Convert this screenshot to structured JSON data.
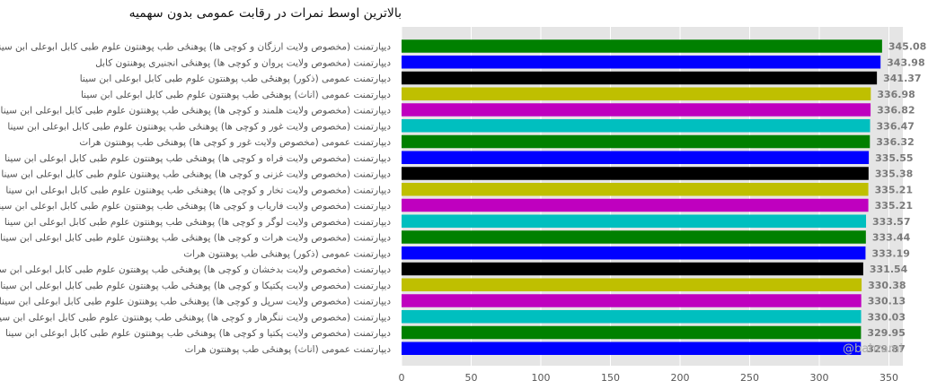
{
  "chart_data": {
    "type": "bar",
    "orientation": "horizontal",
    "title": "بالاترین اوسط نمرات در رقابت عمومی بدون سهمیه",
    "xlabel": "",
    "ylabel": "",
    "xlim": [
      0,
      360
    ],
    "xticks": [
      0,
      50,
      100,
      150,
      200,
      250,
      300,
      350
    ],
    "grid": true,
    "watermark": "@bahrami",
    "colors": [
      "#008000",
      "#0000ff",
      "#000000",
      "#bfbf00",
      "#bf00bf",
      "#00bfbf"
    ],
    "categories": [
      "دیپارتمنت (مخصوص ولایت ارزگان و کوچی ها) پوهنځی طب پوهنتون علوم طبی کابل ابوعلی ابن سینا",
      "دیپارتمنت (مخصوص ولایت پروان و کوچی ها) پوهنځی انجنیری پوهنتون کابل",
      "دیپارتمنت عمومی (ذکور) پوهنځی طب پوهنتون علوم طبی کابل ابوعلی ابن سینا",
      "دیپارتمنت عمومی (اناث) پوهنځی طب پوهنتون علوم طبی کابل ابوعلی ابن سینا",
      "دیپارتمنت (مخصوص ولایت هلمند و کوچی ها) پوهنځی طب پوهنتون علوم طبی کابل ابوعلی ابن سینا",
      "دیپارتمنت (مخصوص ولایت غور و کوچی ها) پوهنځی طب پوهنتون علوم طبی کابل ابوعلی ابن سینا",
      "دیپارتمنت عمومی (مخصوص ولایت غور و کوچی ها) پوهنځی طب پوهنتون هرات",
      "دیپارتمنت (مخصوص ولایت فراه و کوچی ها) پوهنځی طب پوهنتون علوم طبی کابل ابوعلی ابن سینا",
      "دیپارتمنت (مخصوص ولایت غزنی و کوچی ها) پوهنځی طب پوهنتون علوم طبی کابل ابوعلی ابن سینا",
      "دیپارتمنت (مخصوص ولایت تخار و کوچی ها) پوهنځی طب پوهنتون علوم طبی کابل ابوعلی ابن سینا",
      "دیپارتمنت (مخصوص ولایت فاریاب و کوچی ها) پوهنځی طب پوهنتون علوم طبی کابل ابوعلی ابن سینا",
      "دیپارتمنت (مخصوص ولایت لوگر و کوچی ها) پوهنځی طب پوهنتون علوم طبی کابل ابوعلی ابن سینا",
      "دیپارتمنت (مخصوص ولایت هرات و کوچی ها) پوهنځی طب پوهنتون علوم طبی کابل ابوعلی ابن سینا",
      "دیپارتمنت عمومی (ذکور) پوهنځی طب پوهنتون هرات",
      "دیپارتمنت (مخصوص ولایت بدخشان و کوچی ها) پوهنځی طب پوهنتون علوم طبی کابل ابوعلی ابن سینا",
      "دیپارتمنت (مخصوص ولایت پکتیکا و کوچی ها) پوهنځی طب پوهنتون علوم طبی کابل ابوعلی ابن سینا",
      "دیپارتمنت (مخصوص ولایت سرپل و کوچی ها) پوهنځی طب پوهنتون علوم طبی کابل ابوعلی ابن سینا",
      "دیپارتمنت (مخصوص ولایت ننگرهار و کوچی ها) پوهنځی طب پوهنتون علوم طبی کابل ابوعلی ابن سینا",
      "دیپارتمنت (مخصوص ولایت پکتیا و کوچی ها) پوهنځی طب پوهنتون علوم طبی کابل ابوعلی ابن سینا",
      "دیپارتمنت عمومی (اناث) پوهنځی طب پوهنتون هرات"
    ],
    "values": [
      345.08,
      343.98,
      341.37,
      336.98,
      336.82,
      336.47,
      336.32,
      335.55,
      335.38,
      335.21,
      335.21,
      333.57,
      333.44,
      333.19,
      331.54,
      330.38,
      330.13,
      330.03,
      329.95,
      329.87
    ]
  }
}
